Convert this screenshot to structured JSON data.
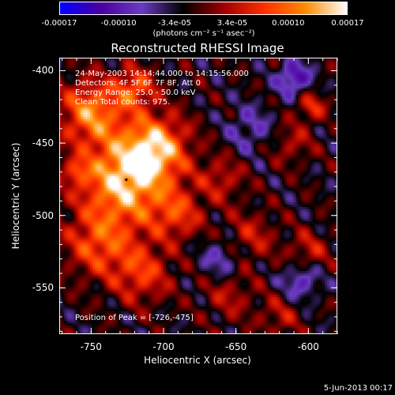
{
  "chart_data": {
    "type": "heatmap",
    "title": "Reconstructed RHESSI Image",
    "xlabel": "Heliocentric X (arcsec)",
    "ylabel": "Heliocentric Y (arcsec)",
    "xlim": [
      -772,
      -580
    ],
    "ylim": [
      -582,
      -391
    ],
    "x_ticks": [
      "-750",
      "-700",
      "-650",
      "-600"
    ],
    "x_tick_values": [
      -750,
      -700,
      -650,
      -600
    ],
    "y_ticks": [
      "-400",
      "-450",
      "-500",
      "-550"
    ],
    "y_tick_values": [
      -400,
      -450,
      -500,
      -550
    ],
    "colorbar": {
      "ticks": [
        "-0.00017",
        "-0.00010",
        "-3.4e-05",
        "3.4e-05",
        "0.00010",
        "0.00017"
      ],
      "tick_values": [
        -0.00017,
        -0.0001,
        -3.4e-05,
        3.4e-05,
        0.0001,
        0.00017
      ],
      "units": "(photons cm⁻² s⁻¹ asec⁻²)",
      "range": [
        -0.00017,
        0.00017
      ],
      "colormap": [
        "#0000ff",
        "#4b00a0",
        "#6a3cc0",
        "#000000",
        "#a00000",
        "#ff3000",
        "#ff8c00",
        "#ffffff"
      ]
    },
    "annotations": [
      "24-May-2003 14:14:44.000 to 14:15:56.000",
      "Detectors: 4F 5F 6F 7F 8F, Att 0",
      "Energy Range: 25.0 - 50.0 keV",
      "Clean    Total counts: 975."
    ],
    "peak_label": "Position of Peak = [-726,-475]",
    "peak": {
      "x": -726,
      "y": -475
    },
    "sources": [
      {
        "x": -726,
        "y": -475,
        "sigma": 22,
        "amp": 1.0
      },
      {
        "x": -750,
        "y": -428,
        "sigma": 15,
        "amp": 0.75
      },
      {
        "x": -705,
        "y": -452,
        "sigma": 15,
        "amp": 0.75
      },
      {
        "x": -745,
        "y": -520,
        "sigma": 16,
        "amp": 0.55
      },
      {
        "x": -715,
        "y": -540,
        "sigma": 14,
        "amp": 0.5
      },
      {
        "x": -720,
        "y": -412,
        "sigma": 10,
        "amp": 0.6
      },
      {
        "x": -690,
        "y": -500,
        "sigma": 12,
        "amp": 0.45
      },
      {
        "x": -660,
        "y": -475,
        "sigma": 11,
        "amp": 0.35
      },
      {
        "x": -640,
        "y": -515,
        "sigma": 12,
        "amp": 0.35
      },
      {
        "x": -655,
        "y": -555,
        "sigma": 12,
        "amp": 0.3
      },
      {
        "x": -600,
        "y": -525,
        "sigma": 10,
        "amp": 0.35
      },
      {
        "x": -598,
        "y": -425,
        "sigma": 7,
        "amp": 0.45
      },
      {
        "x": -612,
        "y": -450,
        "sigma": 10,
        "amp": 0.3
      },
      {
        "x": -620,
        "y": -570,
        "sigma": 10,
        "amp": 0.3
      },
      {
        "x": -610,
        "y": -405,
        "sigma": 8,
        "amp": -0.6
      },
      {
        "x": -605,
        "y": -545,
        "sigma": 9,
        "amp": -0.45
      },
      {
        "x": -660,
        "y": -530,
        "sigma": 10,
        "amp": -0.35
      },
      {
        "x": -640,
        "y": -440,
        "sigma": 12,
        "amp": -0.3
      },
      {
        "x": -760,
        "y": -470,
        "sigma": 6,
        "amp": 0.4
      }
    ]
  },
  "footer": "5-Jun-2013 00:17"
}
